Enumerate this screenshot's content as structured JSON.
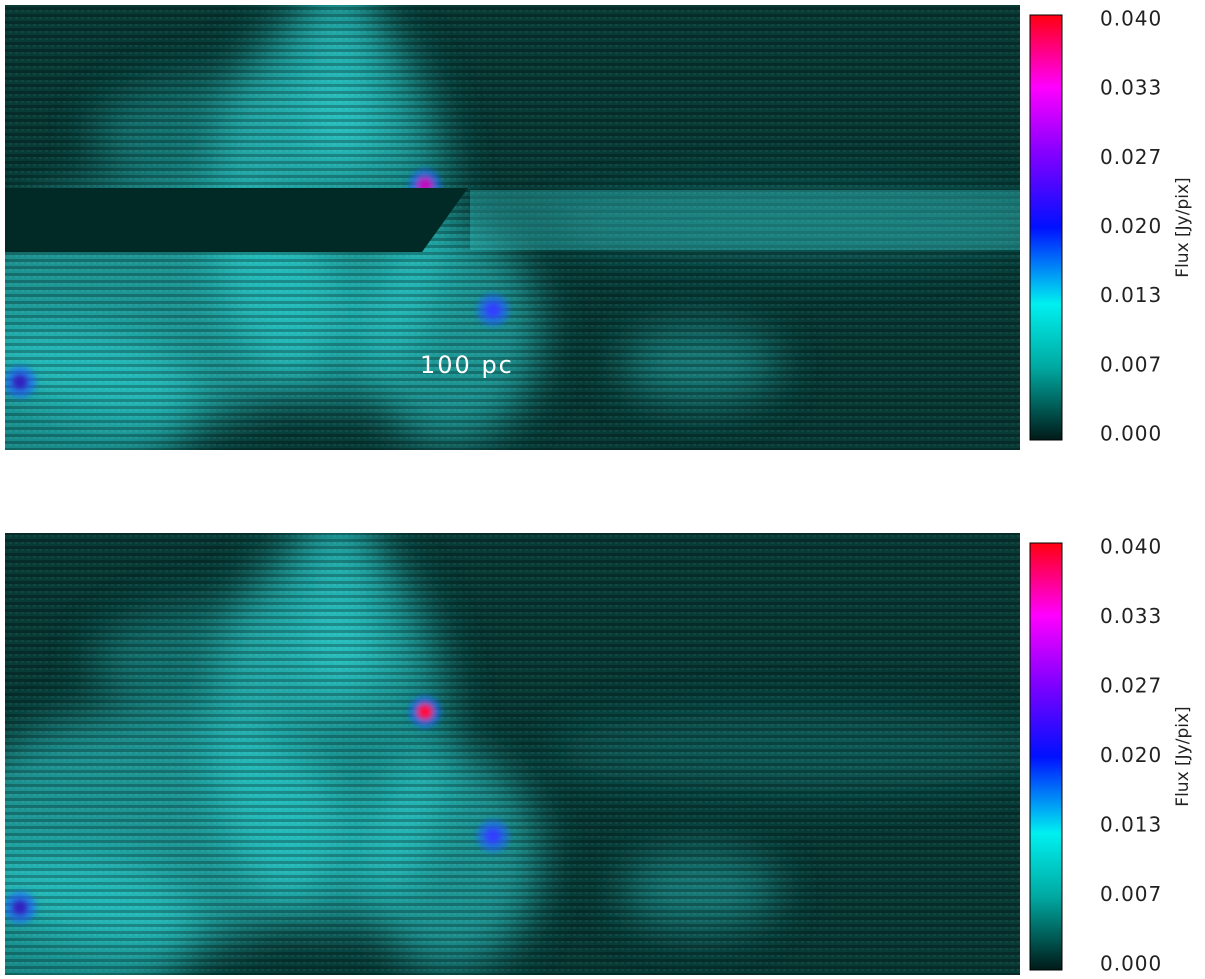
{
  "panels": [
    {
      "annotation": "100 pc",
      "colorbar": {
        "label": "Flux [Jy/pix]",
        "ticks": [
          "0.040",
          "0.033",
          "0.027",
          "0.020",
          "0.013",
          "0.007",
          "0.000"
        ]
      }
    },
    {
      "colorbar": {
        "label": "Flux [Jy/pix]",
        "ticks": [
          "0.040",
          "0.033",
          "0.027",
          "0.020",
          "0.013",
          "0.007",
          "0.000"
        ]
      }
    }
  ]
}
